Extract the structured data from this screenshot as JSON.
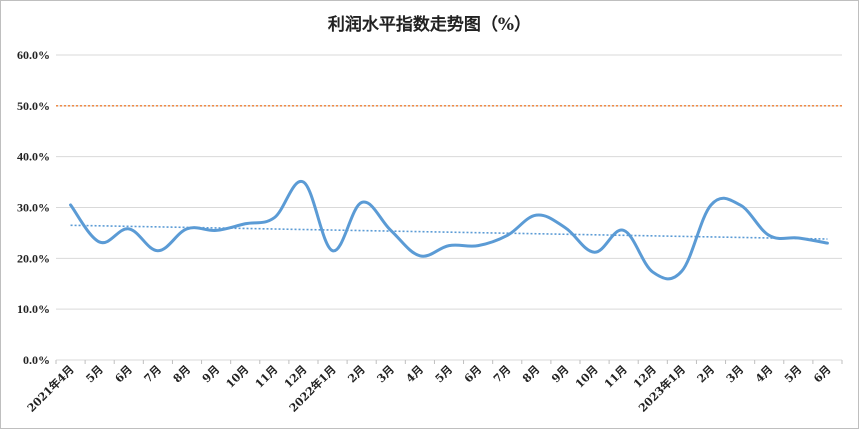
{
  "chart_data": {
    "type": "line",
    "title": "利润水平指数走势图（%）",
    "xlabel": "",
    "ylabel": "",
    "ylim": [
      0,
      60
    ],
    "y_ticks": [
      "0.0%",
      "10.0%",
      "20.0%",
      "30.0%",
      "40.0%",
      "50.0%",
      "60.0%"
    ],
    "categories": [
      "2021年4月",
      "5月",
      "6月",
      "7月",
      "8月",
      "9月",
      "10月",
      "11月",
      "12月",
      "2022年1月",
      "2月",
      "3月",
      "4月",
      "5月",
      "6月",
      "7月",
      "8月",
      "9月",
      "10月",
      "11月",
      "12月",
      "2023年1月",
      "2月",
      "3月",
      "4月",
      "5月",
      "6月"
    ],
    "x_tick_labels": [
      "2021年4月",
      "5月",
      "6月",
      "7月",
      "8月",
      "9月",
      "10月",
      "11月",
      "12月",
      "2022年1月",
      "2月",
      "3月",
      "4月",
      "5月",
      "6月",
      "7月",
      "8月",
      "9月",
      "10月",
      "11月",
      "12月",
      "2023年1月",
      "2月",
      "3月",
      "4月",
      "5月",
      "6月"
    ],
    "series": [
      {
        "values": [
          30.5,
          23.2,
          25.8,
          21.5,
          25.8,
          25.5,
          26.8,
          28.0,
          35.0,
          21.5,
          31.0,
          25.5,
          20.5,
          22.5,
          22.5,
          24.5,
          28.5,
          26.0,
          21.2,
          25.5,
          17.3,
          17.5,
          30.5,
          30.5,
          24.5,
          24.0,
          23.0
        ],
        "color": "#5b9bd5",
        "style": "smooth"
      }
    ],
    "trendline": {
      "start": 26.5,
      "end": 23.8,
      "color": "#5b9bd5",
      "style": "dotted"
    },
    "reference_line": {
      "value": 50,
      "color": "#ed7d31",
      "style": "dotted"
    },
    "grid": true,
    "legend": "none"
  }
}
